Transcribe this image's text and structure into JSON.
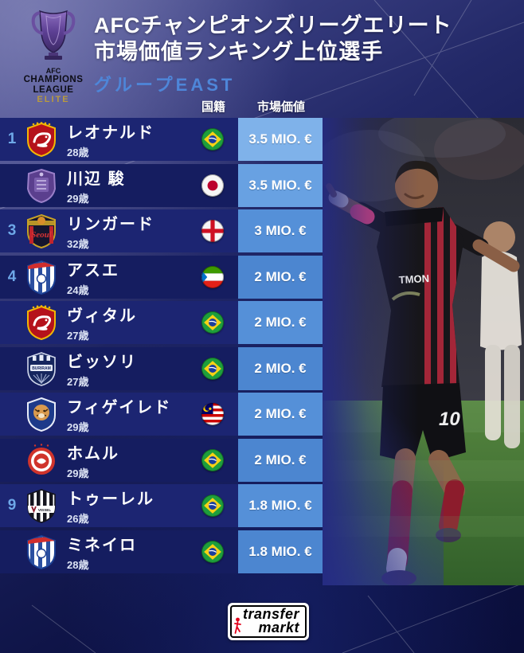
{
  "header": {
    "logo": {
      "org": "AFC",
      "line1": "CHAMPIONS",
      "line2": "LEAGUE",
      "badge": "ELITE"
    },
    "title_line1": "АFCチャンピオンズリーグエリート",
    "title_line2": "市場価値ランキング上位選手",
    "subtitle": "グループEAST"
  },
  "columns": {
    "nationality": "国籍",
    "market_value": "市場価値"
  },
  "table": {
    "rows": [
      {
        "rank": "1",
        "name": "レオナルド",
        "age": "28歳",
        "nationality": "Brazil",
        "flag": "BRA",
        "club": "shanghai-port",
        "value": "3.5 MIO. €"
      },
      {
        "rank": "",
        "name": "川辺 駿",
        "age": "29歳",
        "nationality": "Japan",
        "flag": "JPN",
        "club": "sanfrecce",
        "value": "3.5 MIO. €"
      },
      {
        "rank": "3",
        "name": "リンガード",
        "age": "32歳",
        "nationality": "England",
        "flag": "ENG",
        "club": "fc-seoul",
        "value": "3 MIO. €"
      },
      {
        "rank": "4",
        "name": "アスエ",
        "age": "24歳",
        "nationality": "Equatorial Guinea",
        "flag": "GNQ",
        "club": "shanghai-shenhua",
        "value": "2 MIO. €"
      },
      {
        "rank": "",
        "name": "ヴィタル",
        "age": "27歳",
        "nationality": "Brazil",
        "flag": "BRA",
        "club": "shanghai-port",
        "value": "2 MIO. €"
      },
      {
        "rank": "",
        "name": "ビッソリ",
        "age": "27歳",
        "nationality": "Brazil",
        "flag": "BRA",
        "club": "buriram",
        "value": "2 MIO. €"
      },
      {
        "rank": "",
        "name": "フィゲイレド",
        "age": "29歳",
        "nationality": "Malaysia",
        "flag": "MAS",
        "club": "jdt",
        "value": "2 MIO. €"
      },
      {
        "rank": "",
        "name": "ホムル",
        "age": "29歳",
        "nationality": "Brazil",
        "flag": "BRA",
        "club": "chengdu",
        "value": "2 MIO. €"
      },
      {
        "rank": "9",
        "name": "トゥーレル",
        "age": "26歳",
        "nationality": "Brazil",
        "flag": "BRA",
        "club": "vissel-kobe",
        "value": "1.8 MIO. €"
      },
      {
        "rank": "",
        "name": "ミネイロ",
        "age": "28歳",
        "nationality": "Brazil",
        "flag": "BRA",
        "club": "shanghai-shenhua",
        "value": "1.8 MIO. €"
      }
    ]
  },
  "footer": {
    "logo_line1": "transfer",
    "logo_line2": "markt"
  },
  "colors": {
    "accent_blue": "#4e86d9",
    "rank_blue": "#6ea8e8",
    "elite_gold": "#b99a3e",
    "row_dark": "#151d60",
    "row_light": "#1c2572",
    "value_cell_light": "#7fb2ea",
    "value_cell_dark": "#4c86d0"
  },
  "chart_data": {
    "type": "table",
    "title": "АFCチャンピオンズリーグエリート 市場価値ランキング上位選手 (グループEAST)",
    "columns": [
      "rank",
      "player",
      "age",
      "nationality",
      "market_value_mio_eur"
    ],
    "rows": [
      [
        1,
        "レオナルド",
        28,
        "Brazil",
        3.5
      ],
      [
        1,
        "川辺 駿",
        29,
        "Japan",
        3.5
      ],
      [
        3,
        "リンガード",
        32,
        "England",
        3.0
      ],
      [
        4,
        "アスエ",
        24,
        "Equatorial Guinea",
        2.0
      ],
      [
        4,
        "ヴィタル",
        27,
        "Brazil",
        2.0
      ],
      [
        4,
        "ビッソリ",
        27,
        "Brazil",
        2.0
      ],
      [
        4,
        "フィゲイレド",
        29,
        "Malaysia",
        2.0
      ],
      [
        4,
        "ホムル",
        29,
        "Brazil",
        2.0
      ],
      [
        9,
        "トゥーレル",
        26,
        "Brazil",
        1.8
      ],
      [
        9,
        "ミネイロ",
        28,
        "Brazil",
        1.8
      ]
    ]
  }
}
